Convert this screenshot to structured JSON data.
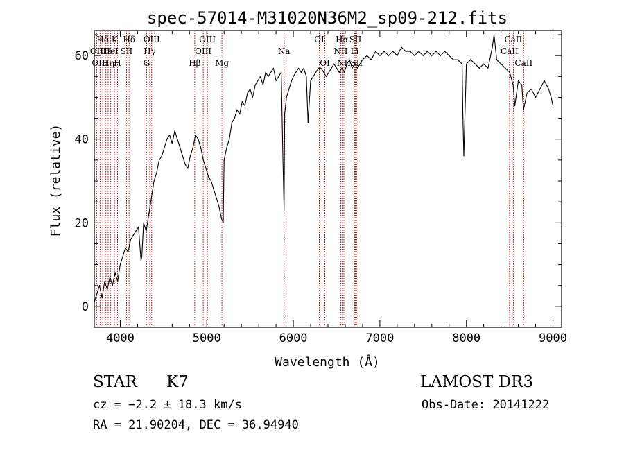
{
  "chart_data": {
    "type": "line",
    "title": "spec-57014-M31020N36M2_sp09-212.fits",
    "xlabel": "Wavelength (Å)",
    "ylabel": "Flux (relative)",
    "xlim": [
      3700,
      9100
    ],
    "ylim": [
      -5,
      66
    ],
    "xticks": [
      "4000",
      "5000",
      "6000",
      "7000",
      "8000",
      "9000"
    ],
    "yticks": [
      "0",
      "20",
      "40",
      "60"
    ],
    "series": [
      {
        "name": "spectrum",
        "color": "#000000",
        "x": [
          3700,
          3730,
          3760,
          3790,
          3820,
          3850,
          3880,
          3910,
          3940,
          3970,
          4000,
          4030,
          4060,
          4090,
          4120,
          4150,
          4180,
          4210,
          4240,
          4250,
          4270,
          4300,
          4330,
          4360,
          4390,
          4420,
          4450,
          4480,
          4510,
          4540,
          4570,
          4600,
          4630,
          4660,
          4690,
          4720,
          4750,
          4780,
          4810,
          4840,
          4870,
          4900,
          4930,
          4960,
          4990,
          5020,
          5050,
          5080,
          5110,
          5140,
          5170,
          5190,
          5200,
          5230,
          5260,
          5290,
          5320,
          5350,
          5380,
          5410,
          5440,
          5470,
          5500,
          5530,
          5560,
          5590,
          5620,
          5650,
          5680,
          5710,
          5740,
          5770,
          5800,
          5830,
          5860,
          5880,
          5893,
          5900,
          5920,
          5950,
          5980,
          6000,
          6030,
          6060,
          6090,
          6120,
          6150,
          6170,
          6200,
          6230,
          6260,
          6290,
          6320,
          6350,
          6380,
          6410,
          6440,
          6470,
          6500,
          6530,
          6560,
          6590,
          6620,
          6650,
          6680,
          6710,
          6740,
          6770,
          6800,
          6850,
          6900,
          6950,
          7000,
          7050,
          7100,
          7150,
          7200,
          7250,
          7300,
          7350,
          7400,
          7450,
          7500,
          7550,
          7600,
          7650,
          7700,
          7750,
          7800,
          7850,
          7900,
          7950,
          7960,
          7970,
          8000,
          8050,
          8100,
          8150,
          8200,
          8250,
          8300,
          8320,
          8350,
          8400,
          8450,
          8500,
          8540,
          8560,
          8600,
          8640,
          8660,
          8700,
          8750,
          8800,
          8850,
          8900,
          8950,
          8980,
          9000
        ],
        "values": [
          1,
          3,
          5,
          2,
          6,
          4,
          7,
          5,
          8,
          6,
          10,
          12,
          14,
          13,
          16,
          17,
          18,
          19,
          11,
          12,
          20,
          18,
          22,
          26,
          30,
          32,
          35,
          36,
          38,
          40,
          41,
          39,
          42,
          40,
          38,
          36,
          34,
          33,
          36,
          38,
          41,
          40,
          38,
          35,
          33,
          31,
          30,
          28,
          26,
          24,
          21,
          20,
          35,
          38,
          40,
          44,
          45,
          47,
          46,
          49,
          48,
          51,
          52,
          50,
          53,
          54,
          55,
          53,
          56,
          55,
          56,
          57,
          54,
          55,
          56,
          35,
          23,
          46,
          50,
          52,
          54,
          55,
          56,
          57,
          56,
          57,
          55,
          44,
          54,
          55,
          56,
          57,
          57,
          56,
          55,
          56,
          57,
          58,
          57,
          56,
          57,
          56,
          58,
          59,
          57,
          58,
          57,
          58,
          59,
          60,
          59,
          61,
          60,
          61,
          60,
          61,
          60,
          62,
          61,
          61,
          60,
          61,
          60,
          61,
          60,
          61,
          60,
          61,
          60,
          59,
          59,
          58,
          45,
          36,
          58,
          59,
          58,
          57,
          58,
          57,
          62,
          65,
          59,
          58,
          57,
          56,
          53,
          48,
          54,
          53,
          47,
          51,
          52,
          50,
          52,
          54,
          52,
          50,
          48
        ]
      }
    ],
    "lines": [
      {
        "name": "Hδ",
        "x": 3797,
        "row": 0
      },
      {
        "name": "OII",
        "x": 3727,
        "row": 1
      },
      {
        "name": "OIII",
        "x": 3767,
        "row": 2
      },
      {
        "name": "Hε",
        "x": 3834,
        "row": 1
      },
      {
        "name": "Hη",
        "x": 3860,
        "row": 2
      },
      {
        "name": "K",
        "x": 3934,
        "row": 0
      },
      {
        "name": "HeI",
        "x": 3889,
        "row": 1
      },
      {
        "name": "H",
        "x": 3968,
        "row": 2
      },
      {
        "name": "Hδ",
        "x": 4102,
        "row": 0
      },
      {
        "name": "SII",
        "x": 4072,
        "row": 1
      },
      {
        "name": "OIII",
        "x": 4363,
        "row": 0
      },
      {
        "name": "Hγ",
        "x": 4341,
        "row": 1
      },
      {
        "name": "G",
        "x": 4304,
        "row": 2
      },
      {
        "name": "OIII",
        "x": 5007,
        "row": 0
      },
      {
        "name": "OIII",
        "x": 4959,
        "row": 1
      },
      {
        "name": "Hβ",
        "x": 4861,
        "row": 2
      },
      {
        "name": "Mg",
        "x": 5175,
        "row": 2
      },
      {
        "name": "Na",
        "x": 5893,
        "row": 1
      },
      {
        "name": "OI",
        "x": 6300,
        "row": 0
      },
      {
        "name": "OI",
        "x": 6364,
        "row": 2
      },
      {
        "name": "Hα",
        "x": 6563,
        "row": 0
      },
      {
        "name": "NII",
        "x": 6548,
        "row": 1
      },
      {
        "name": "NII",
        "x": 6584,
        "row": 2
      },
      {
        "name": "SII",
        "x": 6717,
        "row": 0
      },
      {
        "name": "Li",
        "x": 6708,
        "row": 1
      },
      {
        "name": "SII",
        "x": 6731,
        "row": 2
      },
      {
        "name": "CaII",
        "x": 8542,
        "row": 0
      },
      {
        "name": "CaII",
        "x": 8498,
        "row": 1
      },
      {
        "name": "CaII",
        "x": 8662,
        "row": 2
      }
    ]
  },
  "info": {
    "object_type": "STAR",
    "subclass": "K7",
    "survey": "LAMOST DR3",
    "redshift": "cz = −2.2 ± 18.3 km/s",
    "obs_date": "Obs-Date: 20141222",
    "coords": "RA =  21.90204, DEC =  36.94940"
  }
}
